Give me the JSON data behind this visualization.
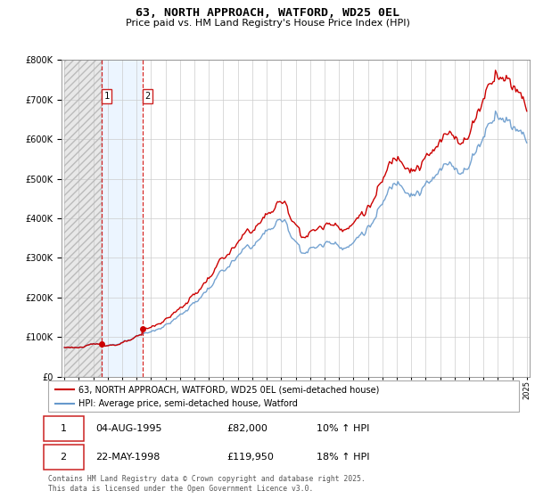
{
  "title": "63, NORTH APPROACH, WATFORD, WD25 0EL",
  "subtitle": "Price paid vs. HM Land Registry's House Price Index (HPI)",
  "legend_line1": "63, NORTH APPROACH, WATFORD, WD25 0EL (semi-detached house)",
  "legend_line2": "HPI: Average price, semi-detached house, Watford",
  "transaction1_date": "04-AUG-1995",
  "transaction1_price": "£82,000",
  "transaction1_hpi": "10% ↑ HPI",
  "transaction2_date": "22-MAY-1998",
  "transaction2_price": "£119,950",
  "transaction2_hpi": "18% ↑ HPI",
  "footnote": "Contains HM Land Registry data © Crown copyright and database right 2025.\nThis data is licensed under the Open Government Licence v3.0.",
  "red_color": "#cc0000",
  "blue_color": "#6699cc",
  "background_color": "#ffffff",
  "ylim": [
    0,
    800000
  ],
  "yticks": [
    0,
    100000,
    200000,
    300000,
    400000,
    500000,
    600000,
    700000,
    800000
  ],
  "start_year": 1993,
  "end_year": 2025,
  "transaction1_year": 1995.58,
  "transaction2_year": 1998.38,
  "transaction1_value": 82000,
  "transaction2_value": 119950
}
